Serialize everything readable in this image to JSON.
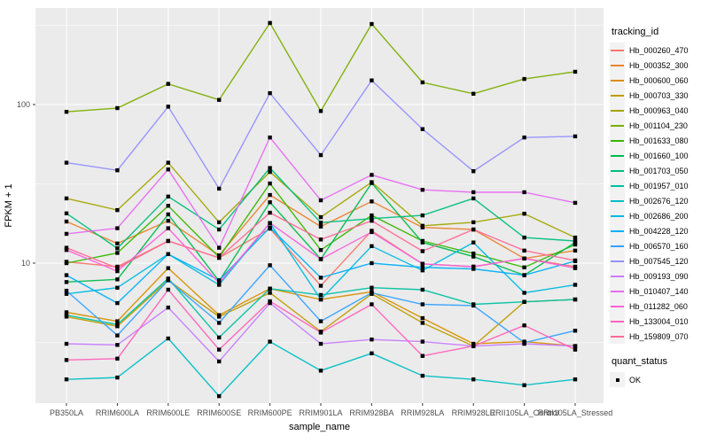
{
  "chart": {
    "y_axis_title": "FPKM + 1",
    "x_axis_title": "sample_name",
    "legend_title": "tracking_id",
    "legend2_title": "quant_status",
    "legend2_items": [
      "OK"
    ],
    "colors": {
      "panel_bg": "#EBEBEB",
      "grid": "#FFFFFF",
      "axis_text": "#4D4D4D",
      "point": "#000000",
      "legend_key_bg": "#F2F2F2"
    }
  },
  "chart_data": {
    "type": "line",
    "yscale": "log10",
    "ylabel": "FPKM + 1",
    "xlabel": "sample_name",
    "legend_position": "right",
    "legend_title": "tracking_id",
    "quant_status_legend": [
      "OK"
    ],
    "y_major_ticks": [
      10,
      100
    ],
    "y_minor_gridlines": [
      3.162,
      31.62,
      316.2
    ],
    "ylim_approx": [
      1.3,
      400
    ],
    "grid": true,
    "x": [
      "PB350LA",
      "RRIM600LA",
      "RRIM600LE",
      "RRIM600SE",
      "RRIM600PE",
      "RRIM901LA",
      "RRIM928BA",
      "RRIM928LA",
      "RRIM928LE",
      "RRII105LA_Control",
      "RRII105LA_Stressed"
    ],
    "series": [
      {
        "name": "Hb_000260_470",
        "color": "#F8766D",
        "values": [
          10.2,
          9.5,
          13.8,
          10.8,
          16.5,
          7.2,
          16.0,
          9.9,
          9.5,
          10.7,
          9.5
        ]
      },
      {
        "name": "Hb_000352_300",
        "color": "#EA8331",
        "values": [
          18.3,
          13.3,
          18.5,
          11.2,
          26.9,
          17.0,
          24.5,
          16.8,
          16.3,
          10.7,
          12.0
        ]
      },
      {
        "name": "Hb_000600_060",
        "color": "#D89000",
        "values": [
          4.9,
          4.3,
          9.3,
          4.7,
          6.9,
          5.9,
          6.6,
          4.5,
          3.1,
          3.2,
          3.0
        ]
      },
      {
        "name": "Hb_000703_330",
        "color": "#C09B00",
        "values": [
          4.6,
          4.0,
          7.8,
          4.6,
          6.5,
          3.7,
          6.4,
          4.2,
          3.0,
          5.7,
          5.9
        ]
      },
      {
        "name": "Hb_000963_040",
        "color": "#A3A500",
        "values": [
          25.6,
          21.6,
          43.0,
          18.1,
          37.6,
          19.5,
          32.4,
          17.2,
          18.1,
          20.5,
          14.5
        ]
      },
      {
        "name": "Hb_001104_230",
        "color": "#7CAE00",
        "values": [
          90,
          95,
          135,
          107,
          327,
          91,
          322,
          138,
          117,
          145,
          161
        ]
      },
      {
        "name": "Hb_001633_080",
        "color": "#39B600",
        "values": [
          10.0,
          11.6,
          23.0,
          10.9,
          31.8,
          12.1,
          20.0,
          13.8,
          11.5,
          9.4,
          13.1
        ]
      },
      {
        "name": "Hb_001660_100",
        "color": "#00BB4E",
        "values": [
          7.6,
          7.9,
          20.3,
          7.7,
          24.2,
          10.6,
          32.0,
          13.5,
          11.0,
          8.4,
          13.5
        ]
      },
      {
        "name": "Hb_001703_050",
        "color": "#00BF7D",
        "values": [
          20.6,
          12.4,
          26.3,
          16.3,
          39.8,
          18.0,
          19.1,
          20.0,
          25.6,
          14.5,
          13.8
        ]
      },
      {
        "name": "Hb_001957_010",
        "color": "#00C1A3",
        "values": [
          4.7,
          4.1,
          8.0,
          3.4,
          6.9,
          6.3,
          7.0,
          6.8,
          5.5,
          5.7,
          5.9
        ]
      },
      {
        "name": "Hb_002676_120",
        "color": "#00BFC4",
        "values": [
          1.85,
          1.9,
          3.35,
          1.45,
          3.2,
          2.1,
          2.7,
          1.95,
          1.85,
          1.7,
          1.85
        ]
      },
      {
        "name": "Hb_002686_200",
        "color": "#00BAE0",
        "values": [
          6.4,
          7.0,
          11.4,
          7.3,
          17.9,
          5.9,
          12.8,
          9.0,
          13.5,
          6.5,
          7.3
        ]
      },
      {
        "name": "Hb_004228_120",
        "color": "#00B0F6",
        "values": [
          8.4,
          5.6,
          11.4,
          7.8,
          16.8,
          8.1,
          10.0,
          9.4,
          9.2,
          8.4,
          10.3
        ]
      },
      {
        "name": "Hb_006570_160",
        "color": "#35A2FF",
        "values": [
          6.7,
          3.5,
          7.8,
          4.2,
          9.7,
          4.3,
          6.5,
          5.5,
          5.4,
          3.15,
          3.75
        ]
      },
      {
        "name": "Hb_007545_120",
        "color": "#9590FF",
        "values": [
          43,
          38.5,
          97,
          29.5,
          118,
          48,
          142,
          70,
          38,
          62,
          63
        ]
      },
      {
        "name": "Hb_009193_090",
        "color": "#C77CFF",
        "values": [
          3.1,
          3.05,
          5.25,
          2.4,
          5.6,
          3.1,
          3.3,
          3.2,
          3.0,
          3.1,
          3.0
        ]
      },
      {
        "name": "Hb_010407_140",
        "color": "#E76BF3",
        "values": [
          15.3,
          16.6,
          39.0,
          12.5,
          62,
          24.9,
          36,
          29,
          28,
          28,
          24
        ]
      },
      {
        "name": "Hb_011282_060",
        "color": "#FA62DB",
        "values": [
          12.1,
          8.9,
          16.6,
          7.5,
          17.9,
          10.6,
          15.7,
          9.9,
          9.5,
          10.7,
          9.3
        ]
      },
      {
        "name": "Hb_133004_010",
        "color": "#FF62BC",
        "values": [
          2.45,
          2.5,
          6.8,
          2.85,
          5.75,
          3.65,
          5.5,
          2.6,
          3.0,
          4.05,
          2.85
        ]
      },
      {
        "name": "Hb_159809_070",
        "color": "#FF6A98",
        "values": [
          12.5,
          9.3,
          13.8,
          10.8,
          20.8,
          14.1,
          18.5,
          11.9,
          16.3,
          12.0,
          10.4
        ]
      }
    ]
  }
}
